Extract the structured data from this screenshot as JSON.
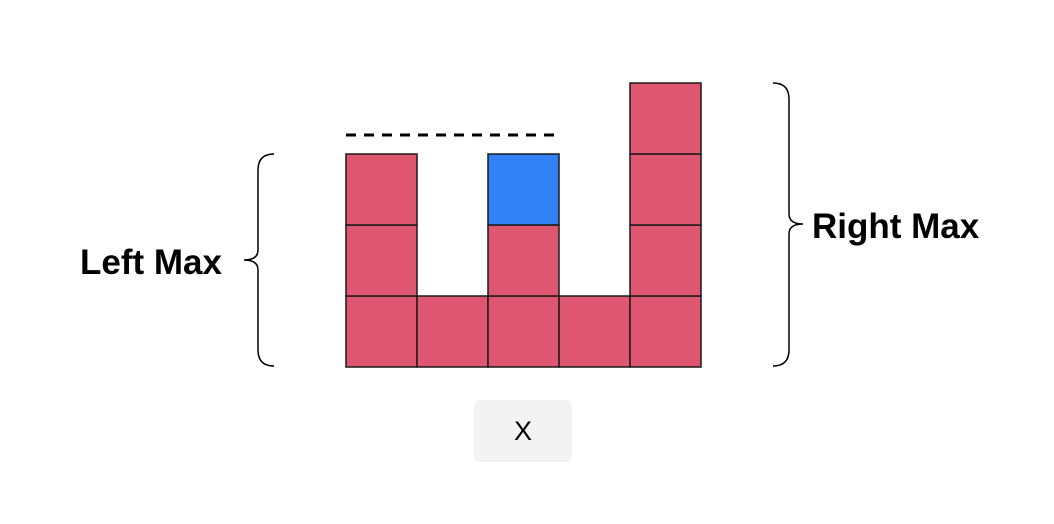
{
  "diagram": {
    "left_label": "Left Max",
    "right_label": "Right Max",
    "button_label": "X",
    "columns": [
      {
        "bar": 3,
        "highlight": 0
      },
      {
        "bar": 1,
        "highlight": 0
      },
      {
        "bar": 2,
        "highlight": 1
      },
      {
        "bar": 1,
        "highlight": 0
      },
      {
        "bar": 4,
        "highlight": 0
      }
    ],
    "colors": {
      "bar": "#de566f",
      "highlight": "#3182f7",
      "stroke": "#1a1a1a"
    }
  }
}
